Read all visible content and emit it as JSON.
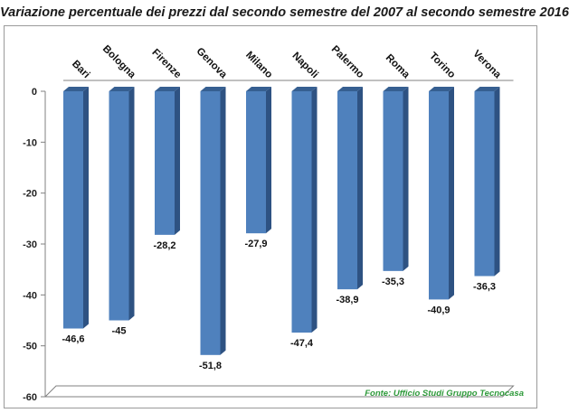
{
  "title": "Variazione percentuale dei prezzi dal secondo semestre del 2007 al secondo semestre 2016",
  "source": "Fonte: Ufficio Studi Gruppo Tecnocasa",
  "colors": {
    "bar_front": "#4F81BD",
    "bar_side": "#2E5282",
    "bar_top": "#365F91",
    "axis": "#808080",
    "source_text": "#2E9A3A"
  },
  "chart_data": {
    "type": "bar",
    "title": "Variazione percentuale dei prezzi dal secondo semestre del 2007 al secondo semestre 2016",
    "categories": [
      "Bari",
      "Bologna",
      "Firenze",
      "Genova",
      "Milano",
      "Napoli",
      "Palermo",
      "Roma",
      "Torino",
      "Verona"
    ],
    "values": [
      -46.6,
      -45,
      -28.2,
      -51.8,
      -27.9,
      -47.4,
      -38.9,
      -35.3,
      -40.9,
      -36.3
    ],
    "value_labels": [
      "-46,6",
      "-45",
      "-28,2",
      "-51,8",
      "-27,9",
      "-47,4",
      "-38,9",
      "-35,3",
      "-40,9",
      "-36,3"
    ],
    "ylim": [
      -60,
      0
    ],
    "yticks": [
      0,
      -10,
      -20,
      -30,
      -40,
      -50,
      -60
    ],
    "xlabel": "",
    "ylabel": "",
    "grid": false,
    "legend": "none",
    "style": "3d-column"
  }
}
